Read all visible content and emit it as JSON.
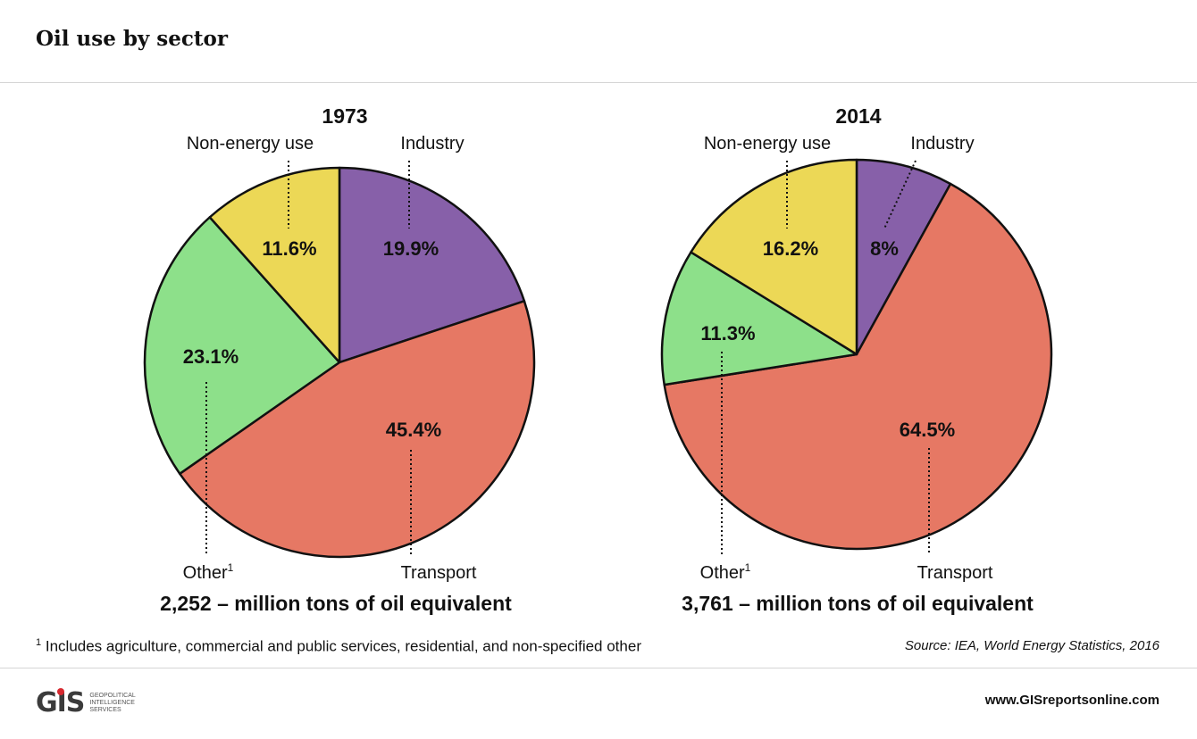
{
  "header": {
    "title": "Oil use by sector"
  },
  "chart_data": [
    {
      "type": "pie",
      "title": "1973",
      "total_label": "2,252 – million tons of oil equivalent",
      "slices": [
        {
          "name": "Industry",
          "value": 19.9,
          "label": "19.9%",
          "color": "#8760a9"
        },
        {
          "name": "Transport",
          "value": 45.4,
          "label": "45.4%",
          "color": "#e67864"
        },
        {
          "name": "Other",
          "value": 23.1,
          "label": "23.1%",
          "color": "#8de08a"
        },
        {
          "name": "Non-energy use",
          "value": 11.6,
          "label": "11.6%",
          "color": "#ecd856"
        }
      ]
    },
    {
      "type": "pie",
      "title": "2014",
      "total_label": "3,761 – million tons of oil equivalent",
      "slices": [
        {
          "name": "Industry",
          "value": 8,
          "label": "8%",
          "color": "#8760a9"
        },
        {
          "name": "Transport",
          "value": 64.5,
          "label": "64.5%",
          "color": "#e67864"
        },
        {
          "name": "Other",
          "value": 11.3,
          "label": "11.3%",
          "color": "#8de08a"
        },
        {
          "name": "Non-energy use",
          "value": 16.2,
          "label": "16.2%",
          "color": "#ecd856"
        }
      ]
    }
  ],
  "legend_names": {
    "industry": "Industry",
    "transport": "Transport",
    "other": "Other",
    "other_sup": "1",
    "non_energy": "Non-energy use"
  },
  "footnote": {
    "marker": "1",
    "text": "Includes agriculture, commercial and public services, residential, and non-specified other"
  },
  "source": "Source: IEA, World Energy Statistics, 2016",
  "branding": {
    "logo": "GIS",
    "tagline": "Geopolitical Intelligence Services",
    "url": "www.GISreportsonline.com"
  }
}
